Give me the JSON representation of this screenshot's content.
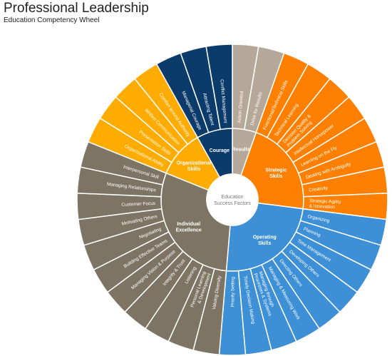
{
  "header": {
    "title": "Professional Leadership",
    "subtitle": "Education Competency Wheel"
  },
  "center": {
    "lines": [
      "Education",
      "Success Factors"
    ],
    "fill": "#ffffff"
  },
  "colors": {
    "Results": "#b5a898",
    "Strategic": "#ff8000",
    "Operating": "#3d8fd6",
    "Individual": "#7d7464",
    "Organizational": "#ffab00",
    "Courage": "#0b3b6b",
    "border": "#ffffff"
  },
  "chart_data": {
    "type": "sunburst",
    "title": "Education Competency Wheel",
    "center_label": "Education Success Factors",
    "groups": [
      {
        "key": "Results",
        "name": "Results",
        "lines": [
          "Results"
        ],
        "color": "#b5a898",
        "items": [
          {
            "name": "Action Oriented",
            "lines": [
              "Action Oriented"
            ]
          },
          {
            "name": "Drive for Results",
            "lines": [
              "Drive for Results"
            ]
          }
        ]
      },
      {
        "key": "Strategic",
        "name": "Strategic Skills",
        "lines": [
          "Strategic",
          "Skills"
        ],
        "color": "#ff8000",
        "items": [
          {
            "name": "Functional/Technical Skills",
            "lines": [
              "Functional/Technical Skills"
            ]
          },
          {
            "name": "Technical Learning",
            "lines": [
              "Technical Learning"
            ]
          },
          {
            "name": "Decision Quality & Problem Solving",
            "lines": [
              "Decision Quality &",
              "Problem Solving"
            ]
          },
          {
            "name": "Intellectual Horsepower",
            "lines": [
              "Intellectual Horsepower"
            ]
          },
          {
            "name": "Learning on the Fly",
            "lines": [
              "Learning on the Fly"
            ]
          },
          {
            "name": "Dealing with Ambiguity",
            "lines": [
              "Dealing with Ambiguity"
            ]
          },
          {
            "name": "Creativity",
            "lines": [
              "Creativity"
            ]
          },
          {
            "name": "Strategic Agility & Innovation",
            "lines": [
              "Strategic Agility",
              "& Innovation"
            ]
          }
        ]
      },
      {
        "key": "Operating",
        "name": "Operating Skills",
        "lines": [
          "Operating",
          "Skills"
        ],
        "color": "#3d8fd6",
        "items": [
          {
            "name": "Organizing",
            "lines": [
              "Organizing"
            ]
          },
          {
            "name": "Planning",
            "lines": [
              "Planning"
            ]
          },
          {
            "name": "Time Management",
            "lines": [
              "Time Management"
            ]
          },
          {
            "name": "Developing Others",
            "lines": [
              "Developing Others"
            ]
          },
          {
            "name": "Directing Others",
            "lines": [
              "Directing Others"
            ]
          },
          {
            "name": "Managing & Measuring Work",
            "lines": [
              "Managing & Measuring Work"
            ]
          },
          {
            "name": "Managing through Processes & Systems",
            "lines": [
              "Managing through",
              "Processes & Systems"
            ]
          },
          {
            "name": "Timely Decision Making",
            "lines": [
              "Timely Decision Making"
            ]
          },
          {
            "name": "Priority Setting",
            "lines": [
              "Priority Setting"
            ]
          }
        ]
      },
      {
        "key": "Individual",
        "name": "Individual Excellence",
        "lines": [
          "Individual",
          "Excellence"
        ],
        "color": "#7d7464",
        "items": [
          {
            "name": "Valuing Diversity",
            "lines": [
              "Valuing Diversity"
            ]
          },
          {
            "name": "Personal Learning & Development",
            "lines": [
              "Personal Learning",
              "& Development"
            ]
          },
          {
            "name": "Listening",
            "lines": [
              "Listening"
            ]
          },
          {
            "name": "Integrity & Trust",
            "lines": [
              "Integrity & Trust"
            ]
          },
          {
            "name": "Managing Vision & Purpose",
            "lines": [
              "Managing Vision & Purpose"
            ]
          },
          {
            "name": "Building Effective Teams",
            "lines": [
              "Building Effective Teams"
            ]
          },
          {
            "name": "Negotiating",
            "lines": [
              "Negotiating"
            ]
          },
          {
            "name": "Motivating Others",
            "lines": [
              "Motivating Others"
            ]
          },
          {
            "name": "Customer Focus",
            "lines": [
              "Customer Focus"
            ]
          },
          {
            "name": "Managing Relationships",
            "lines": [
              "Managing Relationships"
            ]
          },
          {
            "name": "Interpersonal Skill",
            "lines": [
              "Interpersonal Skill"
            ]
          }
        ]
      },
      {
        "key": "Organizational",
        "name": "Organizational Skills",
        "lines": [
          "Organizational",
          "Skills"
        ],
        "color": "#ffab00",
        "items": [
          {
            "name": "Organizational Ability",
            "lines": [
              "Organizational Ability"
            ]
          },
          {
            "name": "Presentation Skills",
            "lines": [
              "Presentation Skills"
            ]
          },
          {
            "name": "Written Communication",
            "lines": [
              "Written Communication"
            ]
          },
          {
            "name": "Comfort around Authority",
            "lines": [
              "Comfort around Authority"
            ]
          }
        ]
      },
      {
        "key": "Courage",
        "name": "Courage",
        "lines": [
          "Courage"
        ],
        "color": "#0b3b6b",
        "items": [
          {
            "name": "Managerial Courage",
            "lines": [
              "Managerial Courage"
            ]
          },
          {
            "name": "Attracting Talent",
            "lines": [
              "Attracting Talent"
            ]
          },
          {
            "name": "Conflict Management",
            "lines": [
              "Conflict Management"
            ]
          }
        ]
      }
    ]
  }
}
